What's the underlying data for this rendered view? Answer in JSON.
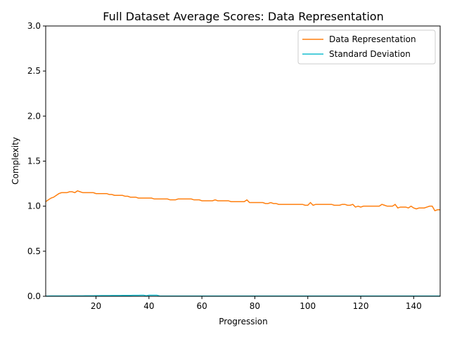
{
  "chart_data": {
    "type": "line",
    "title": "Full Dataset Average Scores: Data Representation",
    "xlabel": "Progression",
    "ylabel": "Complexity",
    "xlim": [
      1,
      150
    ],
    "ylim": [
      0.0,
      3.0
    ],
    "xticks": [
      20,
      40,
      60,
      80,
      100,
      120,
      140
    ],
    "yticks": [
      0.0,
      0.5,
      1.0,
      1.5,
      2.0,
      2.5,
      3.0
    ],
    "ytick_labels": [
      "0.0",
      "0.5",
      "1.0",
      "1.5",
      "2.0",
      "2.5",
      "3.0"
    ],
    "grid": false,
    "legend_position": "top-right",
    "series": [
      {
        "name": "Data Representation",
        "color": "#ff7f0e",
        "values": [
          1.05,
          1.07,
          1.09,
          1.1,
          1.12,
          1.14,
          1.15,
          1.15,
          1.15,
          1.16,
          1.16,
          1.15,
          1.17,
          1.16,
          1.15,
          1.15,
          1.15,
          1.15,
          1.15,
          1.14,
          1.14,
          1.14,
          1.14,
          1.14,
          1.13,
          1.13,
          1.12,
          1.12,
          1.12,
          1.12,
          1.11,
          1.11,
          1.1,
          1.1,
          1.1,
          1.09,
          1.09,
          1.09,
          1.09,
          1.09,
          1.09,
          1.08,
          1.08,
          1.08,
          1.08,
          1.08,
          1.08,
          1.07,
          1.07,
          1.07,
          1.08,
          1.08,
          1.08,
          1.08,
          1.08,
          1.08,
          1.07,
          1.07,
          1.07,
          1.06,
          1.06,
          1.06,
          1.06,
          1.06,
          1.07,
          1.06,
          1.06,
          1.06,
          1.06,
          1.06,
          1.05,
          1.05,
          1.05,
          1.05,
          1.05,
          1.05,
          1.07,
          1.04,
          1.04,
          1.04,
          1.04,
          1.04,
          1.04,
          1.03,
          1.03,
          1.04,
          1.03,
          1.03,
          1.02,
          1.02,
          1.02,
          1.02,
          1.02,
          1.02,
          1.02,
          1.02,
          1.02,
          1.02,
          1.01,
          1.01,
          1.04,
          1.01,
          1.02,
          1.02,
          1.02,
          1.02,
          1.02,
          1.02,
          1.02,
          1.01,
          1.01,
          1.01,
          1.02,
          1.02,
          1.01,
          1.01,
          1.02,
          0.99,
          1.0,
          0.99,
          1.0,
          1.0,
          1.0,
          1.0,
          1.0,
          1.0,
          1.0,
          1.02,
          1.01,
          1.0,
          1.0,
          1.0,
          1.02,
          0.98,
          0.99,
          0.99,
          0.99,
          0.98,
          1.0,
          0.98,
          0.97,
          0.98,
          0.98,
          0.98,
          0.99,
          1.0,
          1.0,
          0.95,
          0.96,
          0.96
        ]
      },
      {
        "name": "Standard Deviation",
        "color": "#17becf",
        "values": [
          0.002,
          0.003,
          0.004,
          0.004,
          0.004,
          0.004,
          0.004,
          0.004,
          0.004,
          0.004,
          0.005,
          0.005,
          0.005,
          0.005,
          0.005,
          0.006,
          0.006,
          0.006,
          0.006,
          0.007,
          0.007,
          0.008,
          0.008,
          0.008,
          0.008,
          0.009,
          0.009,
          0.009,
          0.009,
          0.01,
          0.01,
          0.01,
          0.01,
          0.011,
          0.011,
          0.011,
          0.012,
          0.012,
          0.006,
          0.012,
          0.012,
          0.012,
          0.012,
          0.004,
          0.003,
          0.003,
          0.003,
          0.003,
          0.003,
          0.003,
          0.003,
          0.003,
          0.003,
          0.003,
          0.003,
          0.003,
          0.003,
          0.003,
          0.003,
          0.003,
          0.003,
          0.003,
          0.003,
          0.003,
          0.003,
          0.003,
          0.003,
          0.003,
          0.003,
          0.003,
          0.003,
          0.003,
          0.003,
          0.003,
          0.003,
          0.003,
          0.003,
          0.003,
          0.003,
          0.003,
          0.003,
          0.003,
          0.003,
          0.003,
          0.003,
          0.003,
          0.003,
          0.003,
          0.003,
          0.003,
          0.003,
          0.003,
          0.003,
          0.003,
          0.003,
          0.003,
          0.003,
          0.003,
          0.003,
          0.003,
          0.003,
          0.003,
          0.003,
          0.003,
          0.003,
          0.003,
          0.003,
          0.003,
          0.003,
          0.003,
          0.003,
          0.003,
          0.003,
          0.003,
          0.003,
          0.003,
          0.003,
          0.003,
          0.003,
          0.003,
          0.003,
          0.003,
          0.003,
          0.003,
          0.003,
          0.003,
          0.003,
          0.003,
          0.003,
          0.003,
          0.003,
          0.003,
          0.003,
          0.003,
          0.003,
          0.003,
          0.003,
          0.003,
          0.003,
          0.003,
          0.003,
          0.003,
          0.003,
          0.003,
          0.003,
          0.003,
          0.003,
          0.003,
          0.003,
          0.003
        ]
      }
    ]
  }
}
